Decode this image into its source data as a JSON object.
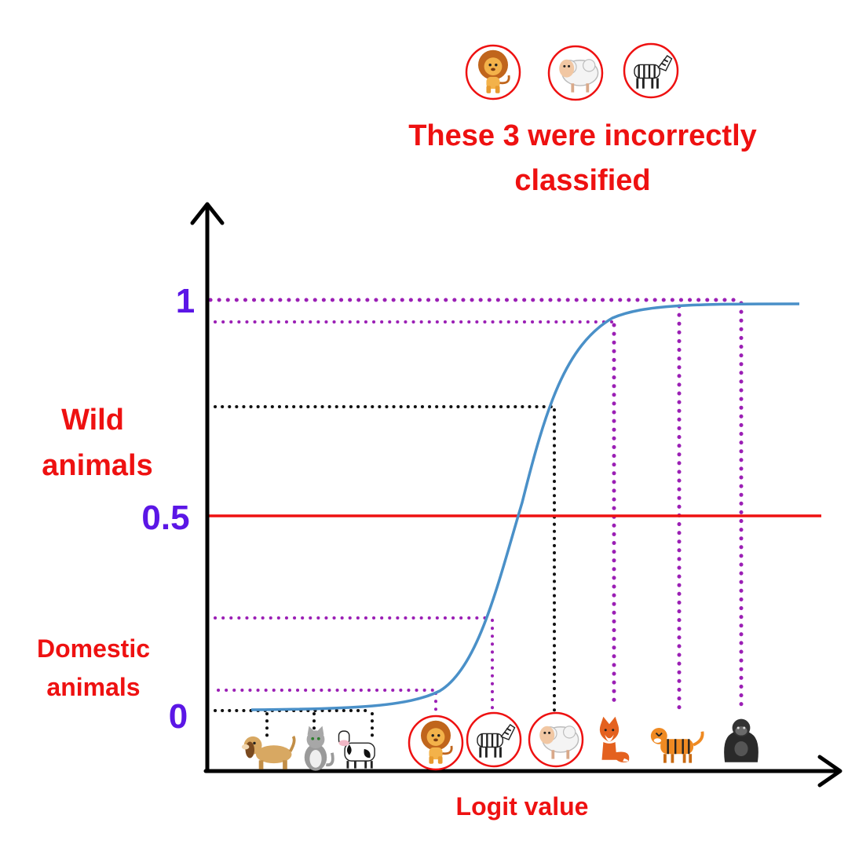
{
  "headline": {
    "line1": "These 3 were incorrectly",
    "line2": "classified"
  },
  "y_ticks": {
    "one": "1",
    "half": "0.5",
    "zero": "0"
  },
  "category_labels": {
    "wild_line1": "Wild",
    "wild_line2": "animals",
    "domestic_line1": "Domestic",
    "domestic_line2": "animals"
  },
  "x_axis_label": "Logit value",
  "colors": {
    "red": "#ee1111",
    "blue_label": "#5b16e6",
    "curve": "#4a90c8",
    "purple_guide": "#9b1fb5",
    "black_guide": "#111111"
  },
  "misclassified_icons": [
    "lion-icon",
    "sheep-icon",
    "zebra-icon"
  ],
  "animals_on_axis": [
    {
      "name": "dog-icon",
      "class": "domestic",
      "probability": 0.0
    },
    {
      "name": "cat-icon",
      "class": "domestic",
      "probability": 0.0
    },
    {
      "name": "cow-icon",
      "class": "domestic",
      "probability": 0.0
    },
    {
      "name": "lion-icon",
      "class": "wild",
      "probability": 0.04,
      "misclassified": true
    },
    {
      "name": "zebra-icon",
      "class": "wild",
      "probability": 0.22,
      "misclassified": true
    },
    {
      "name": "sheep-icon",
      "class": "domestic",
      "probability": 0.74,
      "misclassified": true
    },
    {
      "name": "fox-icon",
      "class": "wild",
      "probability": 0.95
    },
    {
      "name": "tiger-icon",
      "class": "wild",
      "probability": 0.99
    },
    {
      "name": "gorilla-icon",
      "class": "wild",
      "probability": 1.0
    }
  ],
  "threshold": 0.5
}
